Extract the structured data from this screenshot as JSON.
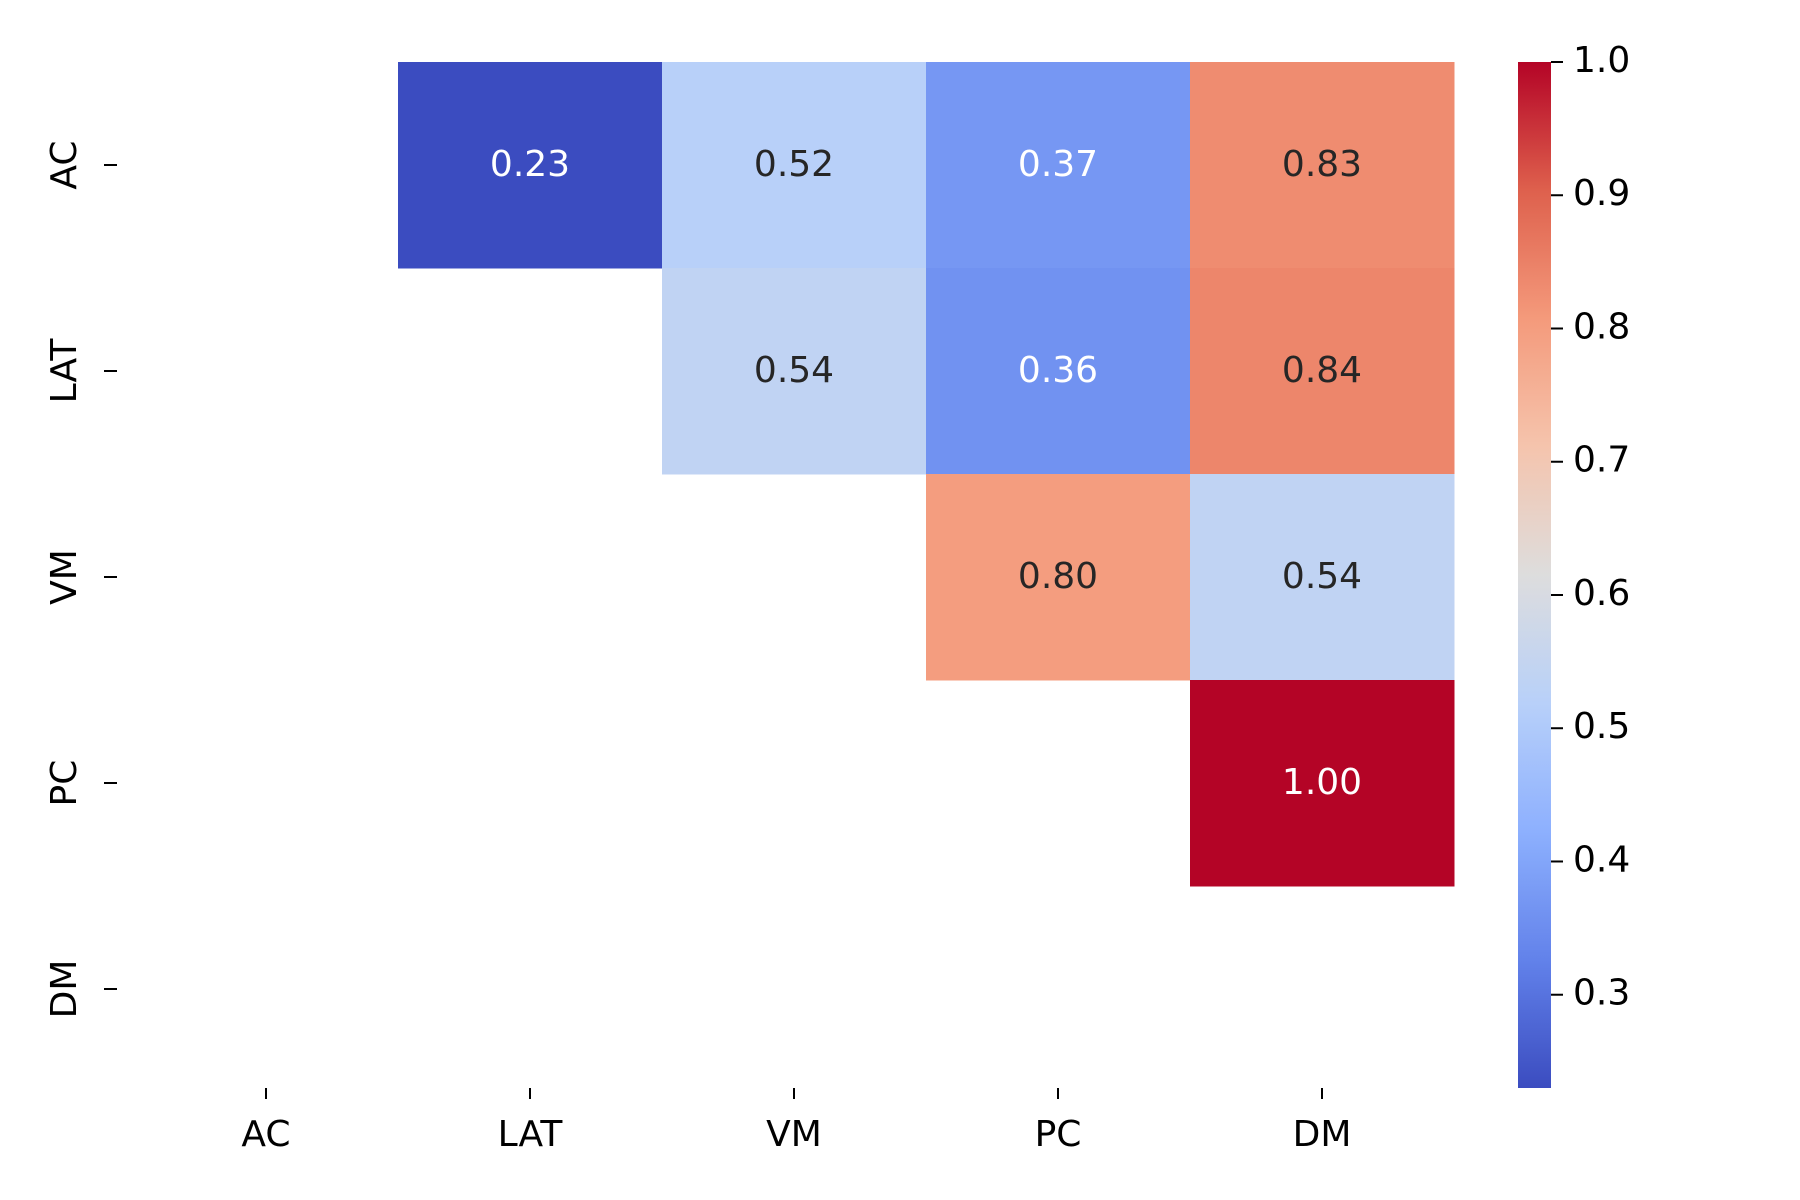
{
  "chart_data": {
    "type": "heatmap",
    "title": "",
    "xlabel": "",
    "ylabel": "",
    "x_categories": [
      "AC",
      "LAT",
      "VM",
      "PC",
      "DM"
    ],
    "y_categories": [
      "AC",
      "LAT",
      "VM",
      "PC",
      "DM"
    ],
    "cells": [
      {
        "row": "AC",
        "col": "LAT",
        "value": 0.23,
        "label": "0.23"
      },
      {
        "row": "AC",
        "col": "VM",
        "value": 0.52,
        "label": "0.52"
      },
      {
        "row": "AC",
        "col": "PC",
        "value": 0.37,
        "label": "0.37"
      },
      {
        "row": "AC",
        "col": "DM",
        "value": 0.83,
        "label": "0.83"
      },
      {
        "row": "LAT",
        "col": "VM",
        "value": 0.54,
        "label": "0.54"
      },
      {
        "row": "LAT",
        "col": "PC",
        "value": 0.36,
        "label": "0.36"
      },
      {
        "row": "LAT",
        "col": "DM",
        "value": 0.84,
        "label": "0.84"
      },
      {
        "row": "VM",
        "col": "PC",
        "value": 0.8,
        "label": "0.80"
      },
      {
        "row": "VM",
        "col": "DM",
        "value": 0.54,
        "label": "0.54"
      },
      {
        "row": "PC",
        "col": "DM",
        "value": 1.0,
        "label": "1.00"
      }
    ],
    "colormap": "coolwarm",
    "colorbar": {
      "vmin": 0.23,
      "vmax": 1.0,
      "ticks": [
        0.3,
        0.4,
        0.5,
        0.6,
        0.7,
        0.8,
        0.9,
        1.0
      ],
      "tick_labels": [
        "0.3",
        "0.4",
        "0.5",
        "0.6",
        "0.7",
        "0.8",
        "0.9",
        "1.0"
      ]
    },
    "grid": false,
    "mask": "lower-triangle-and-diagonal"
  }
}
